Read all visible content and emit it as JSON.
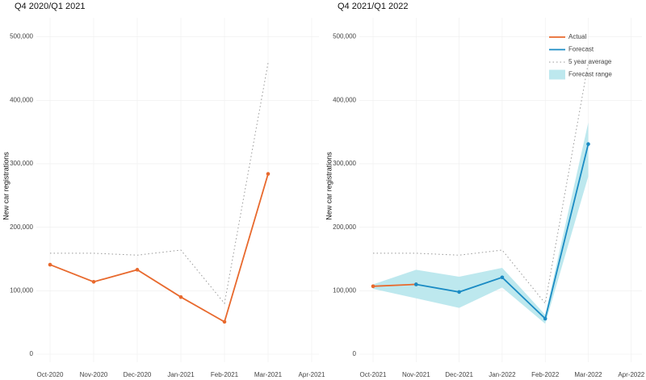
{
  "chart_data": [
    {
      "type": "line",
      "title": "Q4 2020/Q1 2021",
      "ylabel": "New car registrations",
      "categories": [
        "Oct-2020",
        "Nov-2020",
        "Dec-2020",
        "Jan-2021",
        "Feb-2021",
        "Mar-2021",
        "Apr-2021"
      ],
      "ylim": [
        0,
        530000
      ],
      "yticks": [
        0,
        {
          "value": 100000,
          "label": "100,000"
        },
        {
          "value": 200000,
          "label": "200,000"
        },
        {
          "value": 300000,
          "label": "300,000"
        },
        {
          "value": 400000,
          "label": "400,000"
        },
        {
          "value": 500000,
          "label": "500,000"
        }
      ],
      "grid": true,
      "series": [
        {
          "name": "Actual",
          "color": "#e8692d",
          "style": "solid",
          "markers": true,
          "values": [
            141000,
            114000,
            133000,
            90000,
            51000,
            284000,
            null
          ]
        },
        {
          "name": "5 year average",
          "color": "#999999",
          "style": "dotted",
          "markers": false,
          "values": [
            159000,
            159000,
            156000,
            164000,
            80000,
            459000,
            null
          ]
        }
      ]
    },
    {
      "type": "line",
      "title": "Q4 2021/Q1 2022",
      "ylabel": "New car registrations",
      "categories": [
        "Oct-2021",
        "Nov-2021",
        "Dec-2021",
        "Jan-2022",
        "Feb-2022",
        "Mar-2022",
        "Apr-2022"
      ],
      "ylim": [
        0,
        530000
      ],
      "yticks": [
        0,
        {
          "value": 100000,
          "label": "100,000"
        },
        {
          "value": 200000,
          "label": "200,000"
        },
        {
          "value": 300000,
          "label": "300,000"
        },
        {
          "value": 400000,
          "label": "400,000"
        },
        {
          "value": 500000,
          "label": "500,000"
        }
      ],
      "grid": true,
      "legend": "top-right",
      "series": [
        {
          "name": "Actual",
          "color": "#e8692d",
          "style": "solid",
          "markers": true,
          "values": [
            107000,
            110000,
            null,
            null,
            null,
            null,
            null
          ]
        },
        {
          "name": "Forecast",
          "color": "#1a8bc4",
          "style": "solid",
          "markers": true,
          "values": [
            null,
            110000,
            98000,
            121000,
            56000,
            331000,
            null
          ]
        },
        {
          "name": "5 year average",
          "color": "#999999",
          "style": "dotted",
          "markers": false,
          "values": [
            159000,
            159000,
            156000,
            164000,
            80000,
            459000,
            null
          ]
        },
        {
          "name": "Forecast range",
          "color": "#bde8ee",
          "type": "band",
          "lower": [
            103000,
            88000,
            73000,
            105000,
            48000,
            280000,
            null
          ],
          "upper": [
            110000,
            133000,
            122000,
            136000,
            62000,
            365000,
            null
          ]
        }
      ]
    }
  ]
}
